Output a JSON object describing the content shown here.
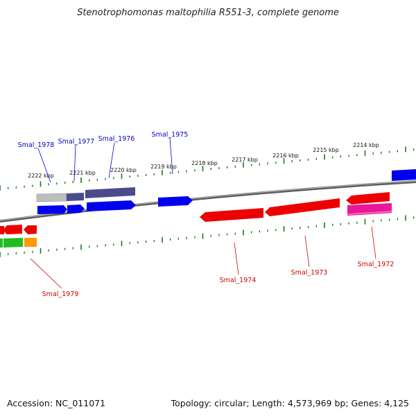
{
  "title": "Stenotrophomonas maltophilia R551-3, complete genome",
  "footer": {
    "accession": "Accession: NC_011071",
    "summary": "Topology: circular; Length: 4,573,969 bp; Genes: 4,125"
  },
  "ruler": {
    "ticks": [
      "2222 kbp",
      "2221 kbp",
      "2220 kbp",
      "2219 kbp",
      "2218 kbp",
      "2217 kbp",
      "2216 kbp",
      "2215 kbp",
      "2214 kbp"
    ]
  },
  "genes": {
    "forward_labels": [
      "Smal_1978",
      "Smal_1977",
      "Smal_1976",
      "Smal_1975"
    ],
    "reverse_labels": [
      "Smal_1979",
      "Smal_1974",
      "Smal_1973",
      "Smal_1972"
    ]
  },
  "colors": {
    "forward_label": "#0000cc",
    "reverse_label": "#cc0000",
    "backbone": "#777777",
    "tick": "#1a7a1a",
    "forward_cds": "#0000ee",
    "reverse_cds": "#ee0000",
    "gene_dark": "#4b4b8c",
    "gene_gray": "#b8b8b8",
    "gene_magenta": "#e8189a",
    "gene_green": "#22bb22",
    "gene_orange": "#ff9900"
  }
}
